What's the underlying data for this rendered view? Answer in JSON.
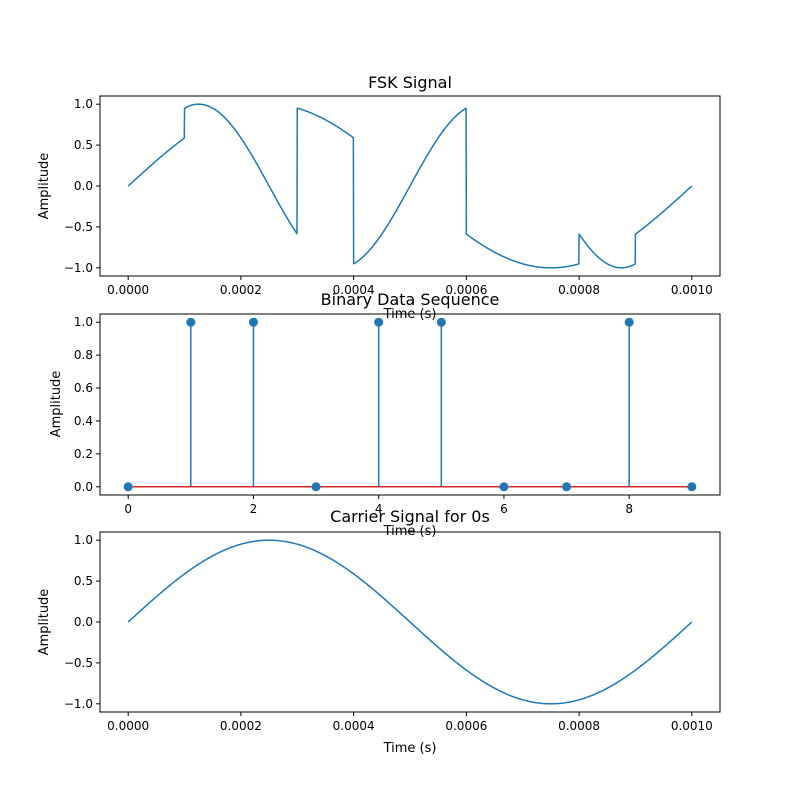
{
  "chart_data": [
    {
      "type": "line",
      "title": "FSK Signal",
      "xlabel": "Time (s)",
      "ylabel": "Amplitude",
      "xlim": [
        -5e-05,
        0.00105
      ],
      "ylim": [
        -1.1,
        1.1
      ],
      "xticks": [
        0.0,
        0.0002,
        0.0004,
        0.0006,
        0.0008,
        0.001
      ],
      "xtick_labels": [
        "0.0000",
        "0.0002",
        "0.0004",
        "0.0006",
        "0.0008",
        "0.0010"
      ],
      "yticks": [
        -1.0,
        -0.5,
        0.0,
        0.5,
        1.0
      ],
      "ytick_labels": [
        "−1.0",
        "−0.5",
        "0.0",
        "0.5",
        "1.0"
      ],
      "grid": false,
      "color": "#1f77b4",
      "bits": [
        0,
        1,
        1,
        0,
        1,
        1,
        0,
        0,
        1,
        0
      ],
      "bit_duration": 0.0001,
      "frequency_for_0": 1000,
      "frequency_for_1": 2000,
      "x_range": [
        0.0,
        0.001
      ]
    },
    {
      "type": "stem",
      "title": "Binary Data Sequence",
      "xlabel": "Time (s)",
      "ylabel": "Amplitude",
      "x": [
        0,
        1,
        2,
        3,
        4,
        5,
        6,
        7,
        8,
        9
      ],
      "values": [
        0,
        1,
        1,
        0,
        1,
        1,
        0,
        0,
        1,
        0
      ],
      "xlim": [
        -0.45,
        9.45
      ],
      "ylim": [
        -0.05,
        1.05
      ],
      "xticks": [
        0,
        2,
        4,
        6,
        8
      ],
      "xtick_labels": [
        "0",
        "2",
        "4",
        "6",
        "8"
      ],
      "yticks": [
        0.0,
        0.2,
        0.4,
        0.6,
        0.8,
        1.0
      ],
      "ytick_labels": [
        "0.0",
        "0.2",
        "0.4",
        "0.6",
        "0.8",
        "1.0"
      ],
      "grid": false,
      "color": "#1f77b4",
      "baseline_color": "#d62728"
    },
    {
      "type": "line",
      "title": "Carrier Signal for 0s",
      "xlabel": "Time (s)",
      "ylabel": "Amplitude",
      "xlim": [
        -5e-05,
        0.00105
      ],
      "ylim": [
        -1.1,
        1.1
      ],
      "xticks": [
        0.0,
        0.0002,
        0.0004,
        0.0006,
        0.0008,
        0.001
      ],
      "xtick_labels": [
        "0.0000",
        "0.0002",
        "0.0004",
        "0.0006",
        "0.0008",
        "0.0010"
      ],
      "yticks": [
        -1.0,
        -0.5,
        0.0,
        0.5,
        1.0
      ],
      "ytick_labels": [
        "−1.0",
        "−0.5",
        "0.0",
        "0.5",
        "1.0"
      ],
      "grid": false,
      "color": "#1f77b4",
      "frequency": 1000,
      "x_range": [
        0.0,
        0.001
      ]
    }
  ]
}
